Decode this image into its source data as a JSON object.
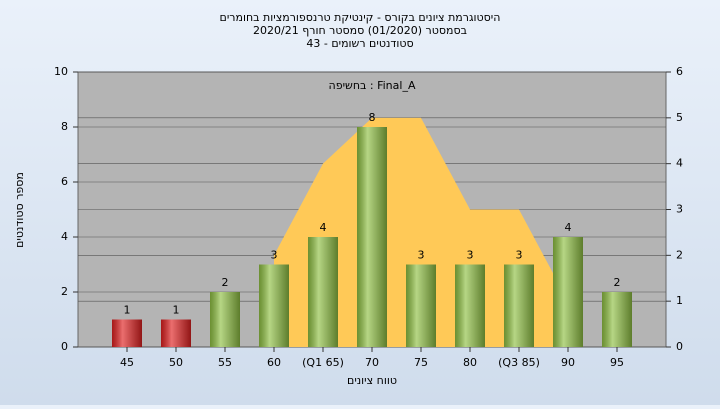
{
  "chart_data": {
    "type": "bar",
    "title": "היסטוגרמת ציונים בקורס - קינטיקת טרנספורמציות בחומרים",
    "subtitle": "בסמסטר (01/2020) סמסטר חורף 2020/21",
    "subtitle2": "43 - סטודנטים רשומים",
    "annotation": "בחשיפה : Final_A",
    "xlabel": "טווח ציונים",
    "ylabel": "מספר סטודנטים",
    "categories": [
      "45",
      "50",
      "55",
      "60",
      "(Q1 65)",
      "70",
      "75",
      "80",
      "(Q3 85)",
      "90",
      "95"
    ],
    "values": [
      1,
      1,
      2,
      3,
      4,
      8,
      3,
      3,
      3,
      4,
      2
    ],
    "colors": [
      "#e02020",
      "#e02020",
      "#8fc043",
      "#8fc043",
      "#8fc043",
      "#8fc043",
      "#8fc043",
      "#8fc043",
      "#8fc043",
      "#8fc043",
      "#8fc043"
    ],
    "area": {
      "color": "#ffc957",
      "axis": "y2",
      "values": [
        null,
        null,
        null,
        2,
        4,
        5,
        5,
        3,
        3,
        1,
        null
      ]
    },
    "ylim": [
      0,
      10
    ],
    "yticks": [
      0,
      2,
      4,
      6,
      8,
      10
    ],
    "y2lim": [
      0,
      6
    ],
    "y2ticks": [
      0,
      1,
      2,
      3,
      4,
      5,
      6
    ],
    "grid": true
  }
}
